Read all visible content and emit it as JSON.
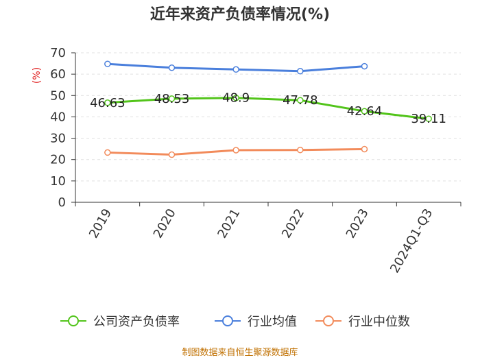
{
  "chart_data": {
    "type": "line",
    "title": "近年来资产负债率情况(%)",
    "ylabel": "(%)",
    "ylim": [
      0,
      70
    ],
    "yticks": [
      0,
      10,
      20,
      30,
      40,
      50,
      60,
      70
    ],
    "categories": [
      "2019",
      "2020",
      "2021",
      "2022",
      "2023",
      "2024Q1-Q3"
    ],
    "series": [
      {
        "name": "公司资产负债率",
        "color": "#52c41a",
        "values": [
          46.63,
          48.53,
          48.9,
          47.78,
          42.64,
          39.11
        ],
        "labels": [
          "46.63",
          "48.53",
          "48.9",
          "47.78",
          "42.64",
          "39.11"
        ]
      },
      {
        "name": "行业均值",
        "color": "#4a7fdc",
        "values": [
          64.8,
          63.0,
          62.2,
          61.4,
          63.7,
          null
        ]
      },
      {
        "name": "行业中位数",
        "color": "#f28b5b",
        "values": [
          23.3,
          22.3,
          24.4,
          24.5,
          24.9,
          null
        ]
      }
    ],
    "grid": "horizontal dashed",
    "legend_position": "bottom"
  },
  "source": "制图数据来自恒生聚源数据库"
}
